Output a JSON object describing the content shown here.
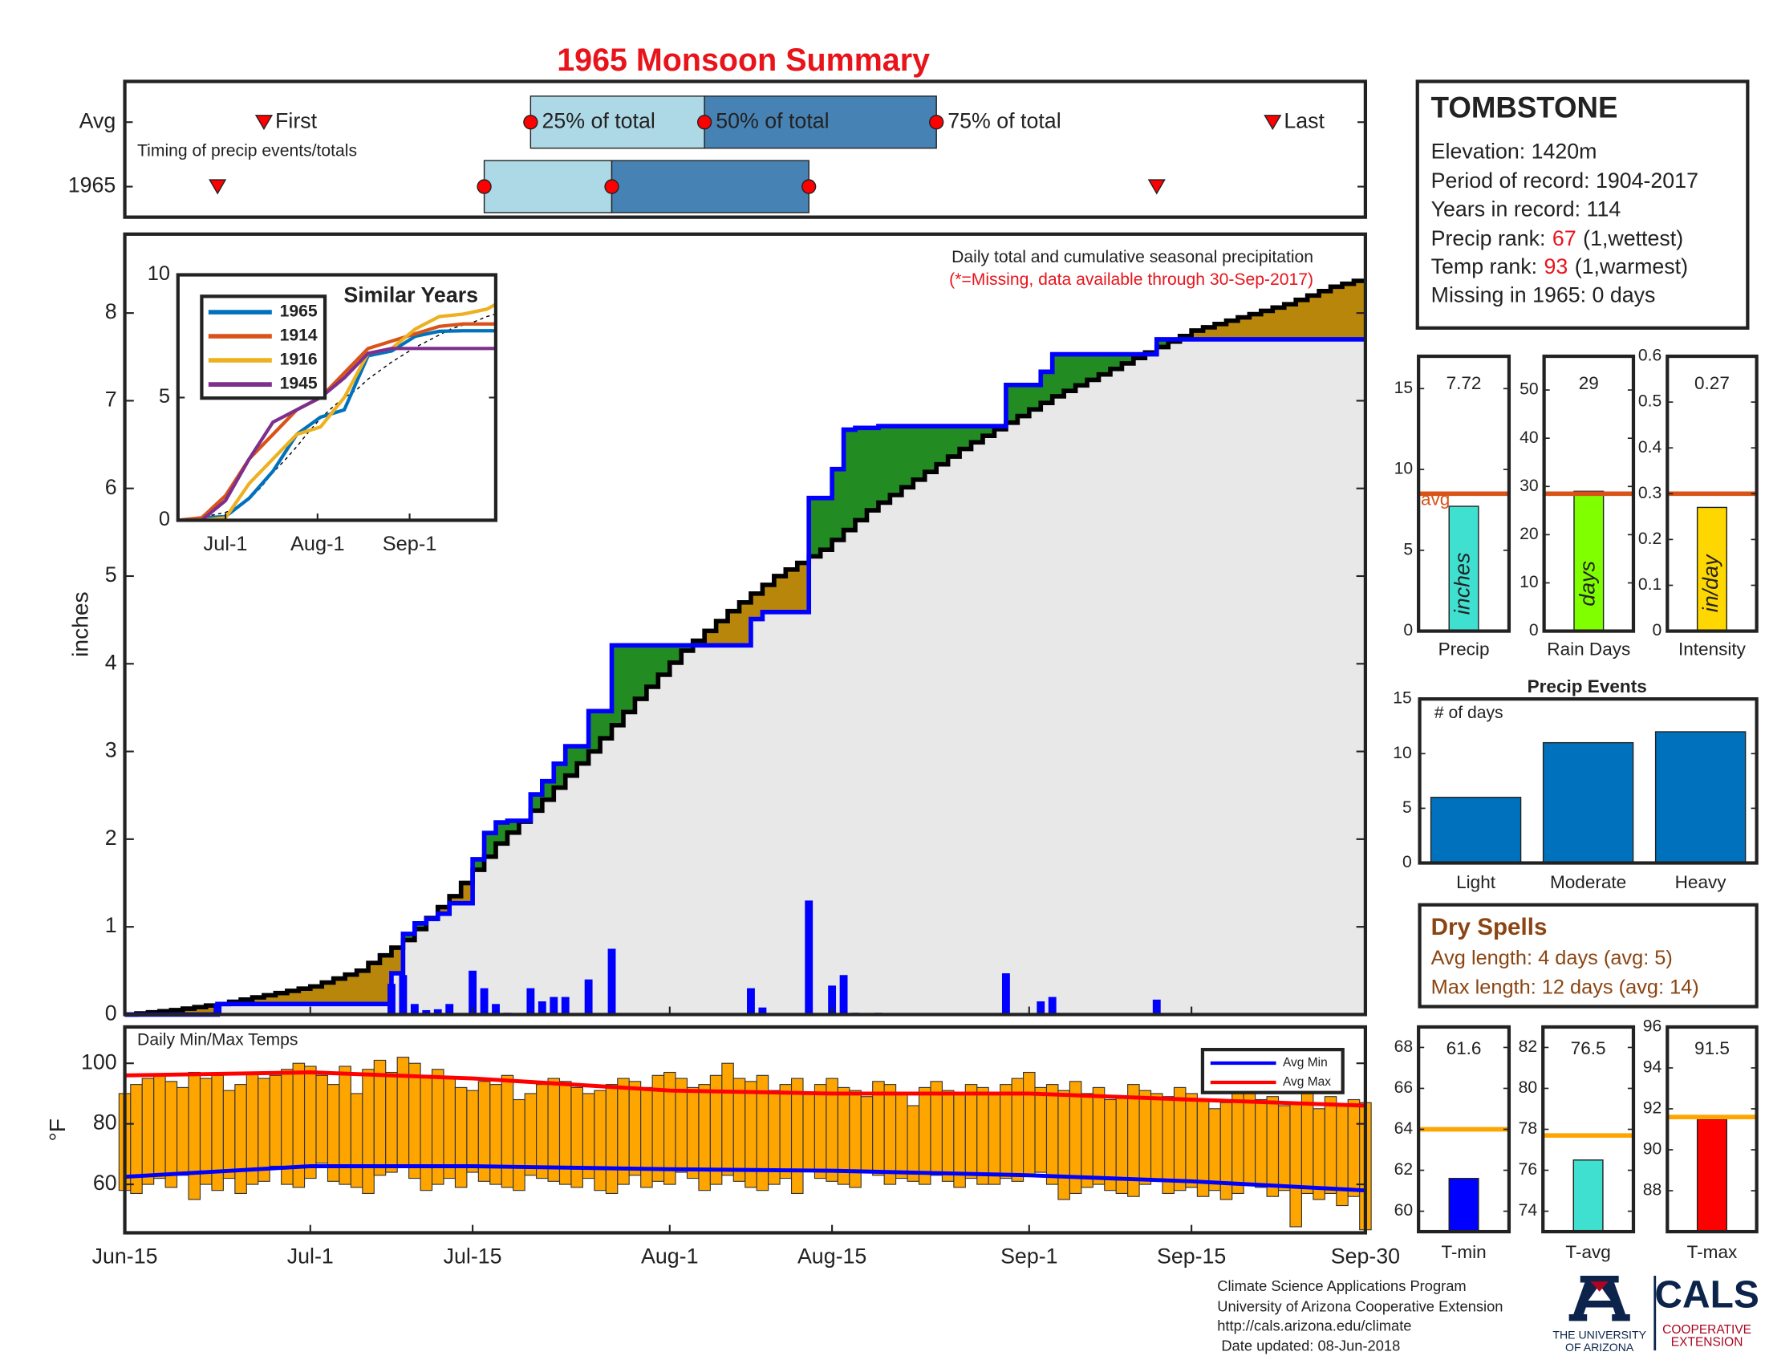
{
  "title": "1965 Monsoon Summary",
  "timing": {
    "caption": "Timing of precip events/totals",
    "labels": {
      "first": "First",
      "p25": "25% of total",
      "p50": "50% of total",
      "p75": "75% of total",
      "last": "Last"
    },
    "light_color": "#add8e6",
    "dark_color": "#4682b4",
    "marker_color": "#ff0000",
    "rows": [
      {
        "name": "Avg",
        "first": 12,
        "p25": 35,
        "p50": 50,
        "p75": 70,
        "last": 99
      },
      {
        "name": "1965",
        "first": 8,
        "p25": 31,
        "p50": 42,
        "p75": 59,
        "last": 89
      }
    ]
  },
  "station": {
    "name": "TOMBSTONE",
    "lines": [
      "Elevation: 1420m",
      "Period of record: 1904-2017",
      "Years in record: 114"
    ],
    "ranks": [
      {
        "label": "Precip rank:",
        "value": 67,
        "note": "(1,wettest)"
      },
      {
        "label": "Temp rank:",
        "value": 93,
        "note": "(1,warmest)"
      }
    ],
    "missing": "Missing in 1965: 0 days"
  },
  "dry_spells": {
    "title": "Dry Spells",
    "lines": [
      "Avg length: 4 days (avg: 5)",
      "Max length: 12 days (avg: 14)"
    ],
    "color": "#8b4513"
  },
  "footer": {
    "lines": [
      "Climate Science Applications Program",
      "University of Arizona Cooperative Extension",
      "http://cals.arizona.edu/climate",
      " Date updated: 08-Jun-2018"
    ],
    "logo_left": [
      "THE UNIVERSITY",
      "OF ARIZONA"
    ],
    "logo_right": {
      "name": "CALS",
      "lines": [
        "COOPERATIVE",
        "EXTENSION"
      ]
    }
  },
  "chart_data": [
    {
      "type": "cumulative",
      "title": "Daily total and cumulative seasonal precipitation",
      "subtitle": "(*=Missing, data available through 30-Sep-2017)",
      "ylabel": "inches",
      "xlim": [
        0,
        107
      ],
      "ylim": [
        0,
        8.9
      ],
      "yticks": [
        0,
        1,
        2,
        3,
        4,
        5,
        6,
        7,
        8
      ],
      "daily": {
        "color": "#0000ff",
        "x": [
          8,
          23,
          24,
          25,
          26,
          27,
          28,
          30,
          31,
          32,
          33,
          35,
          36,
          37,
          38,
          40,
          42,
          54,
          55,
          59,
          61,
          62,
          63,
          65,
          76,
          79,
          80,
          89
        ],
        "values": [
          0.12,
          0.35,
          0.45,
          0.12,
          0.05,
          0.06,
          0.12,
          0.5,
          0.3,
          0.12,
          0.02,
          0.3,
          0.15,
          0.2,
          0.2,
          0.4,
          0.75,
          0.3,
          0.08,
          1.3,
          0.33,
          0.45,
          0.02,
          0.02,
          0.47,
          0.15,
          0.2,
          0.17
        ]
      },
      "avg_cumulative": {
        "color": "#000000",
        "x": [
          0,
          4,
          8,
          12,
          16,
          20,
          24,
          28,
          32,
          36,
          40,
          44,
          48,
          52,
          56,
          60,
          64,
          68,
          72,
          76,
          80,
          84,
          88,
          92,
          96,
          100,
          104,
          107
        ],
        "values": [
          0,
          0.05,
          0.12,
          0.22,
          0.32,
          0.5,
          0.85,
          1.35,
          1.95,
          2.45,
          3.0,
          3.6,
          4.15,
          4.6,
          5.0,
          5.3,
          5.75,
          6.1,
          6.45,
          6.75,
          7.05,
          7.3,
          7.55,
          7.8,
          7.95,
          8.1,
          8.3,
          8.4
        ]
      },
      "above_color": "#228b22",
      "below_color": "#b8860b",
      "base_color": "#e8e8e8"
    },
    {
      "type": "line",
      "title": "Similar Years",
      "xlim": [
        0,
        107
      ],
      "ylim": [
        0,
        10
      ],
      "yticks": [
        0,
        5,
        10
      ],
      "xticks": [
        {
          "value": 16,
          "label": "Jul-1"
        },
        {
          "value": 47,
          "label": "Aug-1"
        },
        {
          "value": 78,
          "label": "Sep-1"
        }
      ],
      "x": [
        0,
        8,
        16,
        24,
        32,
        40,
        48,
        56,
        64,
        72,
        80,
        88,
        96,
        104,
        107
      ],
      "series": [
        {
          "name": "1965",
          "color": "#0072bd",
          "values": [
            0,
            0.1,
            0.15,
            0.9,
            2.0,
            3.5,
            4.2,
            4.5,
            6.7,
            6.9,
            7.5,
            7.7,
            7.72,
            7.72,
            7.72
          ]
        },
        {
          "name": "1914",
          "color": "#d95319",
          "values": [
            0,
            0.1,
            1.0,
            2.5,
            3.5,
            4.5,
            5.0,
            6.0,
            7.0,
            7.3,
            7.6,
            7.9,
            8.0,
            8.0,
            8.0
          ]
        },
        {
          "name": "1916",
          "color": "#edb120",
          "values": [
            0,
            0,
            0.1,
            1.5,
            2.5,
            3.5,
            3.8,
            5.0,
            6.8,
            7.0,
            7.8,
            8.3,
            8.4,
            8.6,
            8.8
          ]
        },
        {
          "name": "1945",
          "color": "#7e2f8e",
          "values": [
            0,
            0,
            0.8,
            2.5,
            4.0,
            4.5,
            5.0,
            5.8,
            6.8,
            7.0,
            7.0,
            7.0,
            7.0,
            7.0,
            7.0
          ]
        }
      ]
    },
    {
      "type": "bar",
      "categories": [
        "Precip"
      ],
      "values": [
        7.72
      ],
      "inner_label": "inches",
      "avg": 8.5,
      "avg_label": "avg",
      "avg_color": "#d95319",
      "color": "#40e0d0",
      "ylim": [
        0,
        17
      ],
      "yticks": [
        0,
        5,
        10,
        15
      ]
    },
    {
      "type": "bar",
      "categories": [
        "Rain Days"
      ],
      "values": [
        29
      ],
      "inner_label": "days",
      "avg": 28.5,
      "avg_color": "#d95319",
      "color": "#7fff00",
      "ylim": [
        0,
        57
      ],
      "yticks": [
        0,
        10,
        20,
        30,
        40,
        50
      ]
    },
    {
      "type": "bar",
      "categories": [
        "Intensity"
      ],
      "values": [
        0.27
      ],
      "inner_label": "in/day",
      "avg": 0.3,
      "avg_color": "#d95319",
      "color": "#ffd700",
      "ylim": [
        0,
        0.6
      ],
      "yticks": [
        0,
        0.1,
        0.2,
        0.3,
        0.4,
        0.5,
        0.6
      ]
    },
    {
      "type": "events",
      "title": "Precip Events",
      "ylabel": "# of days",
      "categories": [
        "Light",
        "Moderate",
        "Heavy"
      ],
      "values": [
        6,
        11,
        12
      ],
      "color": "#0072bd",
      "ylim": [
        0,
        15
      ],
      "yticks": [
        0,
        5,
        10,
        15
      ]
    },
    {
      "type": "range_bar",
      "title": "Daily Min/Max Temps",
      "ylabel": "°F",
      "xlim": [
        0,
        107
      ],
      "ylim": [
        44,
        112
      ],
      "yticks": [
        60,
        80,
        100
      ],
      "xticks": [
        {
          "value": 0,
          "label": "Jun-15"
        },
        {
          "value": 16,
          "label": "Jul-1"
        },
        {
          "value": 30,
          "label": "Jul-15"
        },
        {
          "value": 47,
          "label": "Aug-1"
        },
        {
          "value": 61,
          "label": "Aug-15"
        },
        {
          "value": 78,
          "label": "Sep-1"
        },
        {
          "value": 92,
          "label": "Sep-15"
        },
        {
          "value": 107,
          "label": "Sep-30"
        }
      ],
      "color": "#ffa500",
      "max": [
        90,
        93,
        95,
        96,
        94,
        92,
        97,
        95,
        96,
        91,
        93,
        97,
        95,
        96,
        98,
        100,
        99,
        96,
        93,
        99,
        90,
        98,
        101,
        97,
        102,
        100,
        96,
        98,
        95,
        92,
        91,
        94,
        93,
        96,
        88,
        90,
        93,
        95,
        94,
        92,
        90,
        91,
        93,
        95,
        94,
        92,
        96,
        97,
        95,
        92,
        93,
        96,
        100,
        95,
        94,
        96,
        91,
        93,
        95,
        90,
        93,
        95,
        92,
        91,
        89,
        94,
        93,
        90,
        86,
        92,
        94,
        91,
        90,
        93,
        92,
        90,
        93,
        95,
        97,
        92,
        93,
        91,
        94,
        90,
        92,
        88,
        89,
        93,
        91,
        90,
        89,
        92,
        90,
        88,
        85,
        87,
        90,
        91,
        88,
        89,
        86,
        87,
        90,
        85,
        89,
        86,
        88,
        87
      ],
      "min": [
        58,
        57,
        60,
        62,
        59,
        63,
        55,
        60,
        58,
        62,
        57,
        60,
        61,
        66,
        60,
        59,
        62,
        67,
        61,
        60,
        59,
        57,
        63,
        64,
        66,
        62,
        58,
        60,
        62,
        59,
        64,
        61,
        60,
        59,
        58,
        63,
        62,
        61,
        60,
        59,
        62,
        58,
        57,
        60,
        63,
        59,
        61,
        60,
        64,
        62,
        58,
        60,
        63,
        61,
        59,
        58,
        60,
        62,
        57,
        65,
        62,
        61,
        60,
        59,
        64,
        63,
        60,
        62,
        61,
        60,
        63,
        61,
        59,
        62,
        60,
        60,
        62,
        61,
        63,
        64,
        60,
        55,
        57,
        59,
        60,
        58,
        57,
        56,
        60,
        61,
        57,
        58,
        59,
        56,
        58,
        55,
        57,
        60,
        59,
        56,
        58,
        46,
        57,
        55,
        57,
        53,
        56,
        45
      ],
      "avg_x": [
        0,
        16,
        30,
        47,
        61,
        78,
        92,
        107
      ],
      "series": [
        {
          "name": "Avg Min",
          "color": "#0000ff",
          "values": [
            62.5,
            66,
            66,
            65,
            64.5,
            63,
            61,
            58
          ]
        },
        {
          "name": "Avg Max",
          "color": "#ff0000",
          "values": [
            96,
            97,
            95,
            91,
            90,
            90,
            88,
            86
          ]
        }
      ]
    },
    {
      "type": "bar",
      "categories": [
        "T-min"
      ],
      "values": [
        61.6
      ],
      "avg": 64,
      "avg_color": "#ffa500",
      "color": "#0000ff",
      "ylim": [
        59,
        69
      ],
      "yticks": [
        60,
        62,
        64,
        66,
        68
      ]
    },
    {
      "type": "bar",
      "categories": [
        "T-avg"
      ],
      "values": [
        76.5
      ],
      "avg": 77.7,
      "avg_color": "#ffa500",
      "color": "#40e0d0",
      "ylim": [
        73,
        83
      ],
      "yticks": [
        74,
        76,
        78,
        80,
        82
      ]
    },
    {
      "type": "bar",
      "categories": [
        "T-max"
      ],
      "values": [
        91.5
      ],
      "avg": 91.6,
      "avg_color": "#ffa500",
      "color": "#ff0000",
      "ylim": [
        86,
        96
      ],
      "yticks": [
        88,
        90,
        92,
        94,
        96
      ]
    }
  ]
}
